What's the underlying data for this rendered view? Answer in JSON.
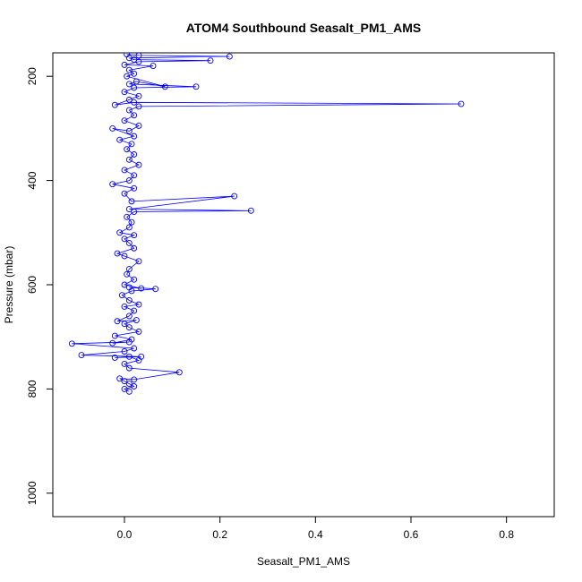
{
  "chart_data": {
    "type": "line",
    "title": "ATOM4 Southbound Seasalt_PM1_AMS",
    "xlabel": "Seasalt_PM1_AMS",
    "ylabel": "Pressure (mbar)",
    "xlim": [
      -0.15,
      0.9
    ],
    "ylim": [
      1045,
      155
    ],
    "y_reversed": true,
    "grid": false,
    "x_ticks": [
      0.0,
      0.2,
      0.4,
      0.6,
      0.8
    ],
    "x_tick_labels": [
      "0.0",
      "0.2",
      "0.4",
      "0.6",
      "0.8"
    ],
    "y_ticks": [
      200,
      400,
      600,
      800,
      1000
    ],
    "y_tick_labels": [
      "200",
      "400",
      "600",
      "800",
      "1000"
    ],
    "colors": {
      "series": "#0000ff",
      "axis": "#000000",
      "background": "#ffffff"
    },
    "marker": "open-circle",
    "series": [
      {
        "points": [
          [
            0.01,
            805
          ],
          [
            0.0,
            800
          ],
          [
            0.02,
            795
          ],
          [
            0.01,
            790
          ],
          [
            0.0,
            785
          ],
          [
            -0.01,
            780
          ],
          [
            0.02,
            782
          ],
          [
            0.115,
            768
          ],
          [
            0.01,
            760
          ],
          [
            0.0,
            752
          ],
          [
            0.03,
            745
          ],
          [
            0.01,
            738
          ],
          [
            -0.02,
            740
          ],
          [
            0.035,
            738
          ],
          [
            -0.09,
            735
          ],
          [
            0.0,
            728
          ],
          [
            0.02,
            722
          ],
          [
            -0.11,
            713
          ],
          [
            0.01,
            710
          ],
          [
            -0.025,
            712
          ],
          [
            0.015,
            705
          ],
          [
            -0.02,
            698
          ],
          [
            0.03,
            690
          ],
          [
            0.01,
            682
          ],
          [
            0.0,
            675
          ],
          [
            0.025,
            668
          ],
          [
            -0.015,
            670
          ],
          [
            0.01,
            660
          ],
          [
            0.02,
            650
          ],
          [
            0.0,
            642
          ],
          [
            0.03,
            638
          ],
          [
            0.01,
            630
          ],
          [
            -0.005,
            620
          ],
          [
            0.015,
            612
          ],
          [
            0.065,
            608
          ],
          [
            0.01,
            605
          ],
          [
            0.035,
            607
          ],
          [
            0.0,
            600
          ],
          [
            0.02,
            590
          ],
          [
            0.005,
            580
          ],
          [
            0.01,
            570
          ],
          [
            0.03,
            555
          ],
          [
            0.0,
            545
          ],
          [
            -0.015,
            540
          ],
          [
            0.02,
            530
          ],
          [
            0.01,
            520
          ],
          [
            0.0,
            512
          ],
          [
            0.02,
            505
          ],
          [
            -0.01,
            500
          ],
          [
            0.01,
            490
          ],
          [
            0.015,
            480
          ],
          [
            0.005,
            470
          ],
          [
            0.02,
            460
          ],
          [
            0.265,
            458
          ],
          [
            0.01,
            455
          ],
          [
            0.23,
            430
          ],
          [
            0.015,
            440
          ],
          [
            0.0,
            425
          ],
          [
            0.02,
            415
          ],
          [
            -0.025,
            407
          ],
          [
            0.01,
            400
          ],
          [
            0.02,
            390
          ],
          [
            0.0,
            380
          ],
          [
            0.03,
            370
          ],
          [
            0.01,
            360
          ],
          [
            0.02,
            350
          ],
          [
            0.005,
            340
          ],
          [
            0.015,
            330
          ],
          [
            -0.01,
            322
          ],
          [
            0.02,
            315
          ],
          [
            -0.025,
            300
          ],
          [
            0.01,
            305
          ],
          [
            0.03,
            295
          ],
          [
            0.0,
            285
          ],
          [
            0.02,
            275
          ],
          [
            0.01,
            265
          ],
          [
            0.03,
            258
          ],
          [
            0.705,
            253
          ],
          [
            0.02,
            250
          ],
          [
            -0.02,
            255
          ],
          [
            0.01,
            245
          ],
          [
            0.03,
            238
          ],
          [
            0.0,
            230
          ],
          [
            0.02,
            222
          ],
          [
            0.15,
            220
          ],
          [
            0.01,
            215
          ],
          [
            0.025,
            210
          ],
          [
            0.085,
            220
          ],
          [
            0.005,
            200
          ],
          [
            0.02,
            195
          ],
          [
            0.01,
            188
          ],
          [
            0.06,
            180
          ],
          [
            0.0,
            178
          ],
          [
            0.03,
            172
          ],
          [
            0.18,
            170
          ],
          [
            0.02,
            168
          ],
          [
            0.01,
            165
          ],
          [
            0.22,
            162
          ],
          [
            0.03,
            160
          ],
          [
            0.005,
            158
          ]
        ]
      }
    ]
  }
}
